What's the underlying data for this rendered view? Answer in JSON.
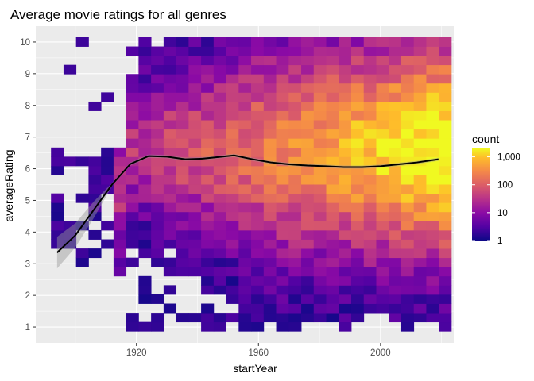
{
  "chart_data": {
    "type": "heatmap",
    "title": "Average movie ratings for all genres",
    "xlabel": "startYear",
    "ylabel": "averageRating",
    "xlim": [
      1887,
      2024
    ],
    "ylim": [
      0.5,
      10.5
    ],
    "x_ticks": [
      1920,
      1960,
      2000
    ],
    "y_ticks": [
      1,
      2,
      3,
      4,
      5,
      6,
      7,
      8,
      9,
      10
    ],
    "grid": true,
    "legend_position": "right",
    "colormap": "plasma",
    "legend": {
      "title": "count",
      "labels": [
        "1,000",
        "100",
        "10",
        "1"
      ],
      "values": [
        1000,
        100,
        10,
        1
      ]
    },
    "smooth_line": {
      "color": "#000000",
      "band_color": "#999999",
      "x": [
        1894,
        1900,
        1906,
        1912,
        1918,
        1924,
        1930,
        1936,
        1942,
        1948,
        1952,
        1958,
        1964,
        1970,
        1976,
        1982,
        1988,
        1994,
        2000,
        2006,
        2012,
        2019
      ],
      "y": [
        3.35,
        3.9,
        4.7,
        5.5,
        6.15,
        6.4,
        6.38,
        6.3,
        6.32,
        6.38,
        6.42,
        6.3,
        6.2,
        6.14,
        6.1,
        6.08,
        6.05,
        6.05,
        6.08,
        6.14,
        6.2,
        6.3
      ]
    }
  }
}
